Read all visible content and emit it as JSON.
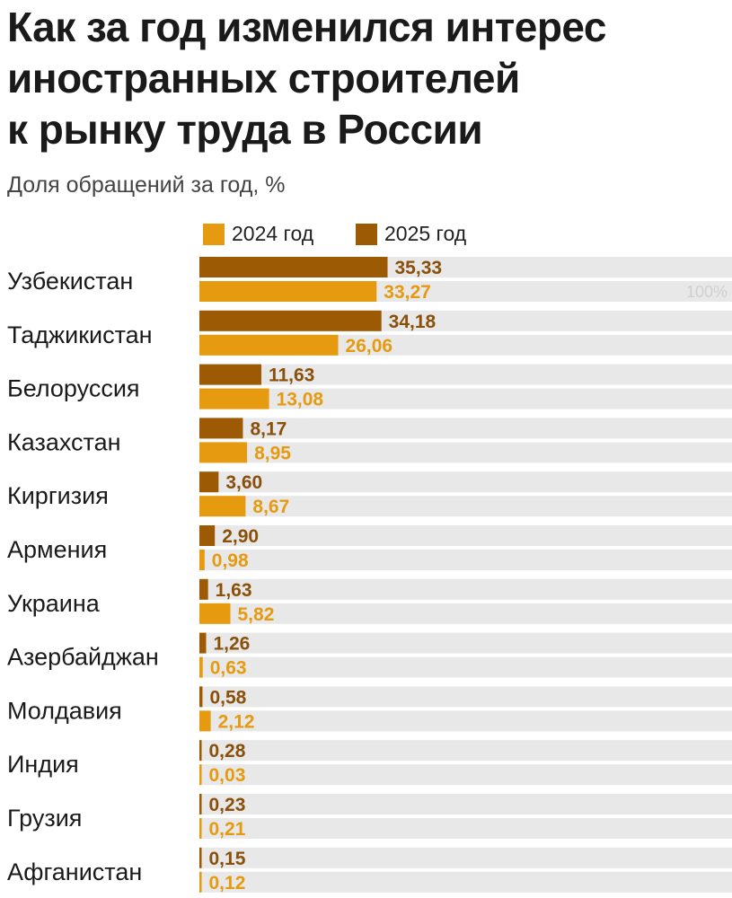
{
  "title_lines": [
    "Как за год изменился интерес",
    "иностранных строителей",
    "к рынку труда в России"
  ],
  "subtitle": "Доля обращений за год, %",
  "legend": {
    "item_2024": "2024 год",
    "item_2025": "2025 год"
  },
  "colors": {
    "y2024": "#e69a0f",
    "y2025": "#9c5a05",
    "track": "#e8e8e8",
    "label_2024": "#e69a0f",
    "label_2025": "#8a5009",
    "hundred_label": "#cfcfcf"
  },
  "chart_data": {
    "type": "bar",
    "orientation": "horizontal",
    "title": "Как за год изменился интерес иностранных строителей к рынку труда в России",
    "subtitle": "Доля обращений за год, %",
    "xlim": [
      0,
      100
    ],
    "max_label": "100%",
    "categories": [
      "Узбекистан",
      "Таджикистан",
      "Белоруссия",
      "Казахстан",
      "Киргизия",
      "Армения",
      "Украина",
      "Азербайджан",
      "Молдавия",
      "Индия",
      "Грузия",
      "Афганистан"
    ],
    "series": [
      {
        "name": "2025 год",
        "values": [
          35.33,
          34.18,
          11.63,
          8.17,
          3.6,
          2.9,
          1.63,
          1.26,
          0.58,
          0.28,
          0.23,
          0.15
        ],
        "labels": [
          "35,33",
          "34,18",
          "11,63",
          "8,17",
          "3,60",
          "2,90",
          "1,63",
          "1,26",
          "0,58",
          "0,28",
          "0,23",
          "0,15"
        ]
      },
      {
        "name": "2024 год",
        "values": [
          33.27,
          26.06,
          13.08,
          8.95,
          8.67,
          0.98,
          5.82,
          0.63,
          2.12,
          0.03,
          0.21,
          0.12
        ],
        "labels": [
          "33,27",
          "26,06",
          "13,08",
          "8,95",
          "8,67",
          "0,98",
          "5,82",
          "0,63",
          "2,12",
          "0,03",
          "0,21",
          "0,12"
        ]
      }
    ]
  }
}
